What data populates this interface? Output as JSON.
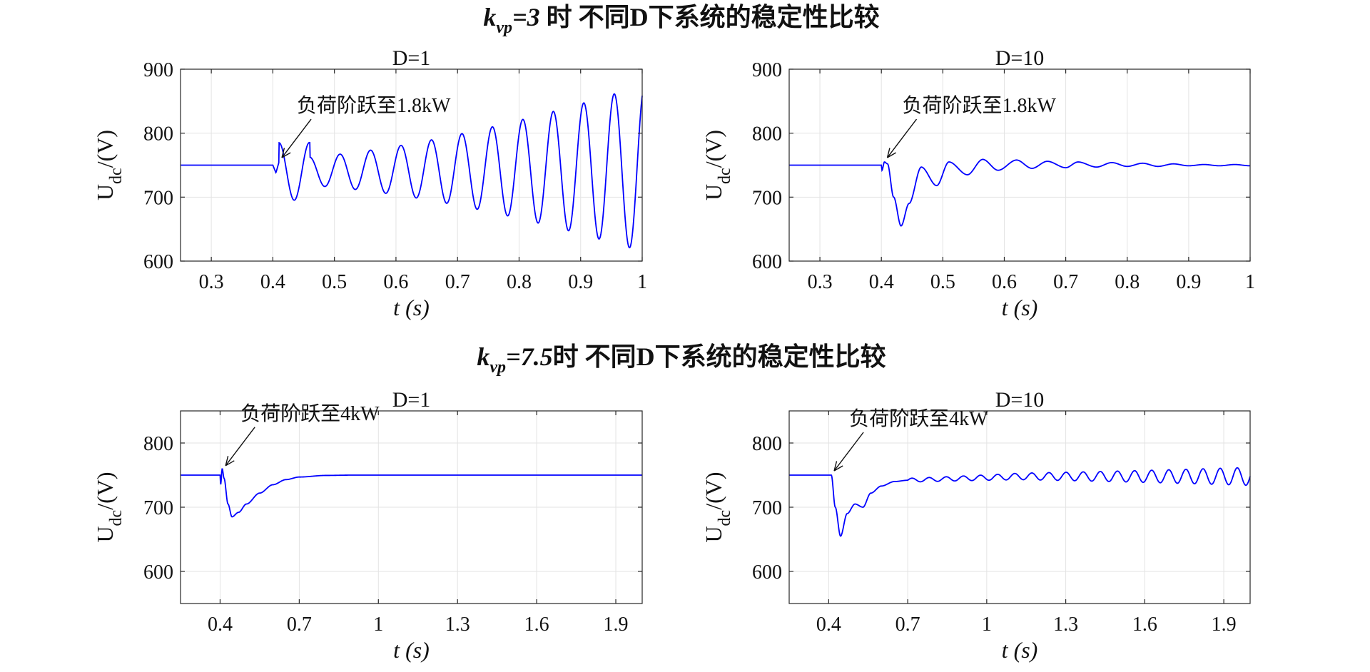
{
  "figure": {
    "row_titles": [
      {
        "k": "k",
        "sub": "vp",
        "eq": "=3",
        "rest": " 时 不同D下系统的稳定性比较"
      },
      {
        "k": "k",
        "sub": "vp",
        "eq": "=7.5",
        "rest": "时 不同D下系统的稳定性比较"
      }
    ]
  },
  "chart_data": [
    {
      "type": "line",
      "title": "D=1",
      "ylabel": "U_dc/(V)",
      "ylabel_main": "U",
      "ylabel_sub": "dc",
      "ylabel_unit": "/(V)",
      "xlabel": "t (s)",
      "xlim": [
        0.25,
        1.0
      ],
      "ylim": [
        600,
        900
      ],
      "xticks": [
        "0.3",
        "0.4",
        "0.5",
        "0.6",
        "0.7",
        "0.8",
        "0.9",
        "1"
      ],
      "xtick_values": [
        0.3,
        0.4,
        0.5,
        0.6,
        0.7,
        0.8,
        0.9,
        1.0
      ],
      "yticks": [
        "600",
        "700",
        "800",
        "900"
      ],
      "ytick_values": [
        600,
        700,
        800,
        900
      ],
      "grid": true,
      "color": "#0000ff",
      "annotation": {
        "text": "负荷阶跃至1.8kW",
        "x": 0.41,
        "y": 755
      },
      "series": [
        {
          "step_t": 0.4,
          "base": 750,
          "omega": 0.0495,
          "envelope": [
            [
              0.41,
              755
            ],
            [
              0.43,
              668
            ],
            [
              0.455,
              752
            ],
            [
              0.48,
              710
            ],
            [
              0.5,
              765
            ],
            [
              0.55,
              772
            ],
            [
              0.6,
              778
            ],
            [
              0.65,
              783
            ],
            [
              0.7,
              789
            ],
            [
              0.75,
              795
            ],
            [
              0.8,
              808
            ],
            [
              0.85,
              820
            ],
            [
              0.9,
              833
            ],
            [
              0.95,
              850
            ],
            [
              0.99,
              855
            ]
          ]
        }
      ]
    },
    {
      "type": "line",
      "title": "D=10",
      "ylabel": "U_dc/(V)",
      "ylabel_main": "U",
      "ylabel_sub": "dc",
      "ylabel_unit": "/(V)",
      "xlabel": "t (s)",
      "xlim": [
        0.25,
        1.0
      ],
      "ylim": [
        600,
        900
      ],
      "xticks": [
        "0.3",
        "0.4",
        "0.5",
        "0.6",
        "0.7",
        "0.8",
        "0.9",
        "1"
      ],
      "xtick_values": [
        0.3,
        0.4,
        0.5,
        0.6,
        0.7,
        0.8,
        0.9,
        1.0
      ],
      "yticks": [
        "600",
        "700",
        "800",
        "900"
      ],
      "ytick_values": [
        600,
        700,
        800,
        900
      ],
      "grid": true,
      "color": "#0000ff",
      "annotation": {
        "text": "负荷阶跃至1.8kW",
        "x": 0.405,
        "y": 755
      },
      "series": [
        {
          "step_t": 0.4,
          "base": 750,
          "points": [
            [
              0.25,
              750
            ],
            [
              0.4,
              750
            ],
            [
              0.401,
              742
            ],
            [
              0.405,
              755
            ],
            [
              0.41,
              752
            ],
            [
              0.42,
              700
            ],
            [
              0.432,
              655
            ],
            [
              0.445,
              690
            ],
            [
              0.465,
              747
            ],
            [
              0.49,
              718
            ],
            [
              0.51,
              755
            ],
            [
              0.54,
              735
            ],
            [
              0.565,
              759
            ],
            [
              0.59,
              742
            ],
            [
              0.62,
              758
            ],
            [
              0.645,
              745
            ],
            [
              0.67,
              756
            ],
            [
              0.7,
              746
            ],
            [
              0.72,
              755
            ],
            [
              0.75,
              747
            ],
            [
              0.775,
              754
            ],
            [
              0.8,
              748
            ],
            [
              0.825,
              753
            ],
            [
              0.85,
              748
            ],
            [
              0.875,
              752
            ],
            [
              0.9,
              749
            ],
            [
              0.925,
              751
            ],
            [
              0.95,
              749
            ],
            [
              0.975,
              751
            ],
            [
              1.0,
              749
            ]
          ]
        }
      ]
    },
    {
      "type": "line",
      "title": "D=1",
      "ylabel": "U_dc/(V)",
      "ylabel_main": "U",
      "ylabel_sub": "dc",
      "ylabel_unit": "/(V)",
      "xlabel": "t (s)",
      "xlim": [
        0.25,
        2.0
      ],
      "ylim": [
        550,
        850
      ],
      "xticks": [
        "0.4",
        "0.7",
        "1",
        "1.3",
        "1.6",
        "1.9"
      ],
      "xtick_values": [
        0.4,
        0.7,
        1.0,
        1.3,
        1.6,
        1.9
      ],
      "yticks": [
        "600",
        "700",
        "800"
      ],
      "ytick_values": [
        600,
        700,
        800
      ],
      "grid": true,
      "color": "#0000ff",
      "annotation": {
        "text": "负荷阶跃至4kW",
        "x": 0.41,
        "y": 758
      },
      "series": [
        {
          "points": [
            [
              0.25,
              750
            ],
            [
              0.4,
              750
            ],
            [
              0.402,
              735
            ],
            [
              0.408,
              760
            ],
            [
              0.415,
              745
            ],
            [
              0.43,
              705
            ],
            [
              0.445,
              685
            ],
            [
              0.47,
              692
            ],
            [
              0.5,
              705
            ],
            [
              0.55,
              722
            ],
            [
              0.6,
              735
            ],
            [
              0.65,
              743
            ],
            [
              0.7,
              747
            ],
            [
              0.8,
              749.5
            ],
            [
              0.9,
              750
            ],
            [
              1.0,
              750
            ],
            [
              1.3,
              750
            ],
            [
              1.6,
              750
            ],
            [
              1.9,
              750
            ],
            [
              2.0,
              750
            ]
          ]
        }
      ]
    },
    {
      "type": "line",
      "title": "D=10",
      "ylabel": "U_dc/(V)",
      "ylabel_main": "U",
      "ylabel_sub": "dc",
      "ylabel_unit": "/(V)",
      "xlabel": "t (s)",
      "xlim": [
        0.25,
        2.0
      ],
      "ylim": [
        550,
        850
      ],
      "xticks": [
        "0.4",
        "0.7",
        "1",
        "1.3",
        "1.6",
        "1.9"
      ],
      "xtick_values": [
        0.4,
        0.7,
        1.0,
        1.3,
        1.6,
        1.9
      ],
      "yticks": [
        "600",
        "700",
        "800"
      ],
      "ytick_values": [
        600,
        700,
        800
      ],
      "grid": true,
      "color": "#0000ff",
      "annotation": {
        "text": "负荷阶跃至4kW",
        "x": 0.41,
        "y": 750
      },
      "series": [
        {
          "step_t": 0.41,
          "base": 750,
          "dip": [
            [
              0.41,
              750
            ],
            [
              0.425,
              700
            ],
            [
              0.445,
              655
            ],
            [
              0.47,
              690
            ],
            [
              0.5,
              705
            ],
            [
              0.53,
              700
            ],
            [
              0.56,
              722
            ],
            [
              0.6,
              733
            ],
            [
              0.65,
              740
            ],
            [
              0.7,
              742
            ]
          ],
          "osc_start": 0.7,
          "omega_period": 0.065,
          "amp_start": 3,
          "amp_end": 14
        }
      ]
    }
  ]
}
